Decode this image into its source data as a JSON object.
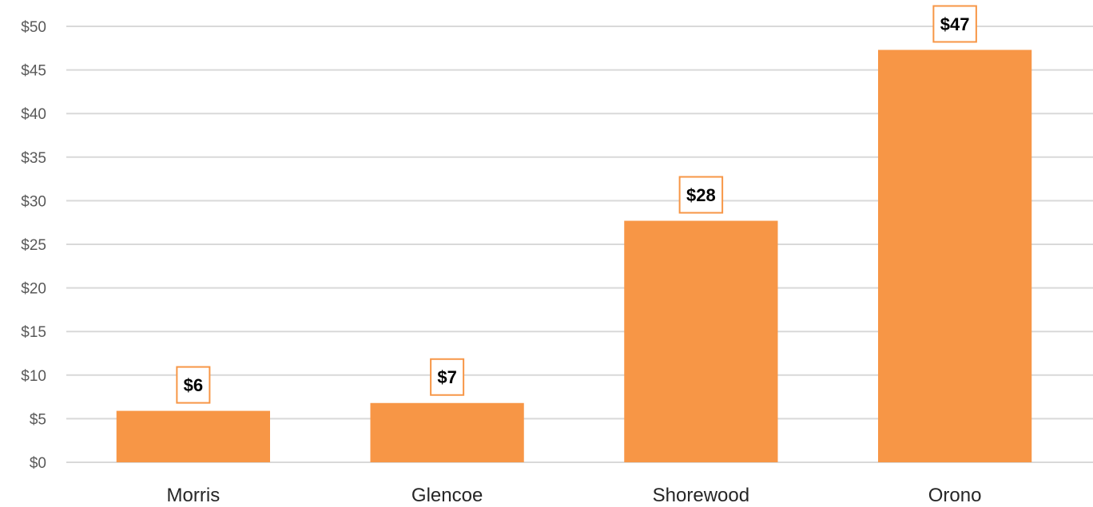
{
  "chart_data": {
    "type": "bar",
    "categories": [
      "Morris",
      "Glencoe",
      "Shorewood",
      "Orono"
    ],
    "values": [
      5.9,
      6.8,
      27.7,
      47.3
    ],
    "data_labels": [
      "$6",
      "$7",
      "$28",
      "$47"
    ],
    "title": "",
    "xlabel": "",
    "ylabel": "",
    "ylim": [
      0,
      50
    ],
    "yticks": [
      0,
      5,
      10,
      15,
      20,
      25,
      30,
      35,
      40,
      45,
      50
    ],
    "ytick_labels": [
      "$0",
      "$5",
      "$10",
      "$15",
      "$20",
      "$25",
      "$30",
      "$35",
      "$40",
      "$45",
      "$50"
    ],
    "grid": true,
    "legend": "none",
    "bar_color": "#f79646",
    "label_border_color": "#f79646"
  }
}
